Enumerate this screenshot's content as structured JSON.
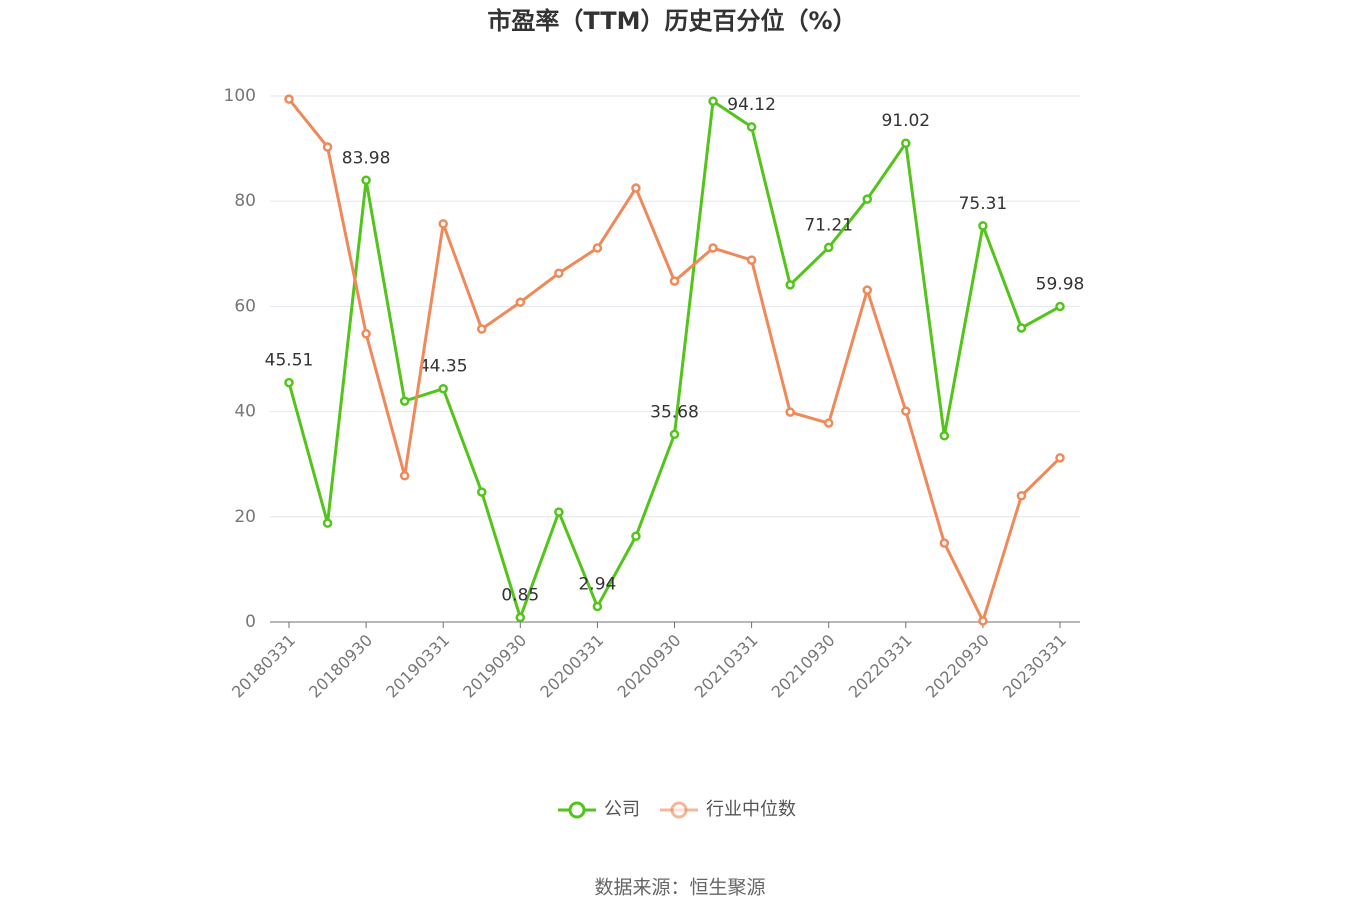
{
  "chart_data": {
    "type": "line",
    "title": "市盈率（TTM）历史百分位（%）",
    "categories": [
      "20180331",
      null,
      "20180930",
      null,
      "20190331",
      null,
      "20190930",
      null,
      "20200331",
      null,
      "20200930",
      null,
      "20210331",
      null,
      "20210930",
      null,
      "20220331",
      null,
      "20220930",
      null,
      "20230331"
    ],
    "series": [
      {
        "name": "公司",
        "color": "#52c41a",
        "values": [
          45.51,
          18.8,
          83.98,
          42.0,
          44.35,
          24.7,
          0.85,
          20.9,
          2.94,
          16.3,
          35.68,
          99.0,
          94.12,
          64.1,
          71.21,
          80.4,
          91.02,
          35.4,
          75.31,
          55.9,
          59.98
        ],
        "value_labels": [
          "45.51",
          null,
          "83.98",
          null,
          "44.35",
          null,
          "0.85",
          null,
          "2.94",
          null,
          "35.68",
          null,
          "94.12",
          null,
          "71.21",
          null,
          "91.02",
          null,
          "75.31",
          null,
          "59.98"
        ]
      },
      {
        "name": "行业中位数",
        "color": "#f0895a",
        "values": [
          99.4,
          90.3,
          54.8,
          27.8,
          75.7,
          55.7,
          60.8,
          66.3,
          71.1,
          82.5,
          64.8,
          71.1,
          68.8,
          39.9,
          37.8,
          63.1,
          40.1,
          15.0,
          0.2,
          24.0,
          31.2
        ]
      }
    ],
    "ylim": [
      0,
      100
    ],
    "yticks": [
      0,
      20,
      40,
      60,
      80,
      100
    ],
    "grid": true,
    "source": "数据来源：恒生聚源"
  }
}
